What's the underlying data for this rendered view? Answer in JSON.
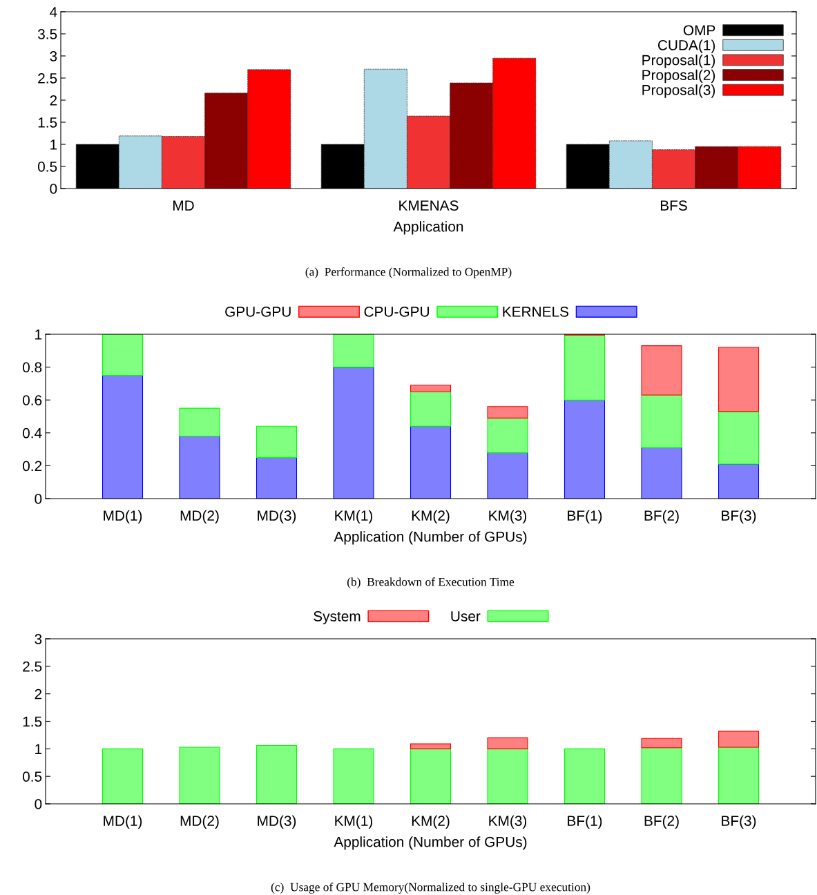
{
  "chart_data": [
    {
      "type": "bar",
      "categories": [
        "MD",
        "KMENAS",
        "BFS"
      ],
      "xlabel": "Application",
      "ylim": [
        0,
        4
      ],
      "yticks": [
        0,
        0.5,
        1,
        1.5,
        2,
        2.5,
        3,
        3.5,
        4
      ],
      "legend": "top right",
      "grid": false,
      "annotations": [
        "(a)  Performance (Normalized to OpenMP)"
      ],
      "series": [
        {
          "name": "OMP",
          "color": "#000000",
          "values": [
            1,
            1,
            1
          ]
        },
        {
          "name": "CUDA(1)",
          "color": "#add8e6",
          "values": [
            1.19,
            2.7,
            1.08
          ]
        },
        {
          "name": "Proposal(1)",
          "color": "#f03232",
          "values": [
            1.18,
            1.64,
            0.88
          ]
        },
        {
          "name": "Proposal(2)",
          "color": "#8b0000",
          "values": [
            2.16,
            2.39,
            0.95
          ]
        },
        {
          "name": "Proposal(3)",
          "color": "#ff0000",
          "values": [
            2.69,
            2.95,
            0.95
          ]
        }
      ]
    },
    {
      "type": "bar",
      "stacked": true,
      "categories": [
        "MD(1)",
        "MD(2)",
        "MD(3)",
        "KM(1)",
        "KM(2)",
        "KM(3)",
        "BF(1)",
        "BF(2)",
        "BF(3)"
      ],
      "xlabel": "Application (Number of GPUs)",
      "ylim": [
        0,
        1
      ],
      "yticks": [
        0,
        0.2,
        0.4,
        0.6,
        0.8,
        1
      ],
      "legend": "top",
      "grid": false,
      "annotations": [
        "(b)  Breakdown of Execution Time"
      ],
      "series": [
        {
          "name": "KERNELS",
          "color": "#8080ff",
          "values": [
            0.75,
            0.38,
            0.25,
            0.8,
            0.44,
            0.28,
            0.6,
            0.31,
            0.21
          ]
        },
        {
          "name": "CPU-GPU",
          "color": "#80ff80",
          "values": [
            0.25,
            0.17,
            0.19,
            0.2,
            0.21,
            0.21,
            0.395,
            0.32,
            0.32
          ]
        },
        {
          "name": "GPU-GPU",
          "color": "#ff8080",
          "values": [
            null,
            null,
            null,
            null,
            0.04,
            0.07,
            0.005,
            0.3,
            0.39
          ]
        }
      ]
    },
    {
      "type": "bar",
      "stacked": true,
      "categories": [
        "MD(1)",
        "MD(2)",
        "MD(3)",
        "KM(1)",
        "KM(2)",
        "KM(3)",
        "BF(1)",
        "BF(2)",
        "BF(3)"
      ],
      "xlabel": "Application (Number of GPUs)",
      "ylim": [
        0,
        3
      ],
      "yticks": [
        0,
        0.5,
        1,
        1.5,
        2,
        2.5,
        3
      ],
      "legend": "top",
      "grid": false,
      "annotations": [
        "(c)  Usage of GPU Memory(Normalized to single-GPU execution)"
      ],
      "series": [
        {
          "name": "User",
          "color": "#80ff80",
          "values": [
            1,
            1.03,
            1.06,
            1,
            1,
            1,
            1,
            1.02,
            1.03
          ]
        },
        {
          "name": "System",
          "color": "#ff8080",
          "values": [
            null,
            null,
            null,
            null,
            0.09,
            0.2,
            null,
            0.17,
            0.29
          ]
        }
      ]
    }
  ]
}
